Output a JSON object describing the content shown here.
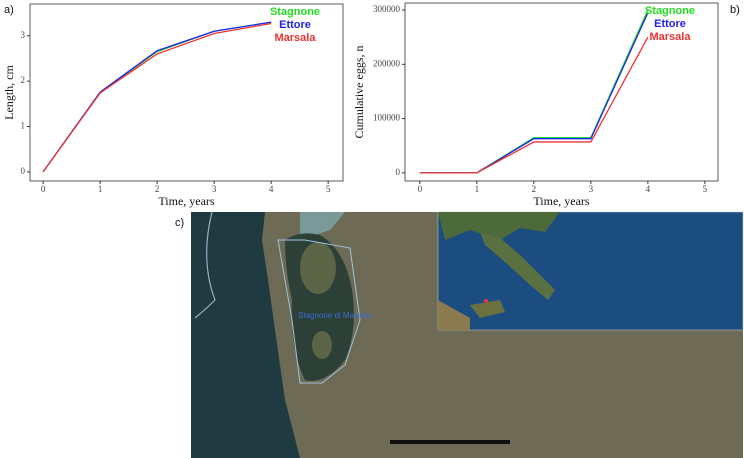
{
  "panel_labels": [
    "a)",
    "b)",
    "c)"
  ],
  "map": {
    "labels": [
      "Stagnone di Marsala"
    ]
  },
  "chart_data": [
    {
      "type": "line",
      "xlabel": "Time, years",
      "ylabel": "Length, cm",
      "x": [
        0,
        1,
        2,
        3,
        4
      ],
      "series": [
        {
          "name": "Stagnone",
          "color": "#22dd22",
          "values": [
            0,
            1.75,
            2.65,
            3.1,
            3.3
          ]
        },
        {
          "name": "Ettore",
          "color": "#2222ee",
          "values": [
            0,
            1.76,
            2.67,
            3.1,
            3.3
          ]
        },
        {
          "name": "Marsala",
          "color": "#ee3333",
          "values": [
            0,
            1.74,
            2.6,
            3.05,
            3.27
          ]
        }
      ],
      "xlim": [
        -0.23,
        5.26
      ],
      "ylim": [
        -0.2,
        3.7
      ],
      "xticks": [
        0,
        1,
        2,
        3,
        4,
        5
      ],
      "yticks": [
        0,
        1,
        2,
        3
      ],
      "legend": "upper right"
    },
    {
      "type": "line",
      "xlabel": "Time, years",
      "ylabel": "Cumulative eggs, n",
      "x": [
        0,
        1,
        2,
        3,
        4
      ],
      "series": [
        {
          "name": "Stagnone",
          "color": "#22dd22",
          "values": [
            0,
            0,
            65000,
            65000,
            300000
          ]
        },
        {
          "name": "Ettore",
          "color": "#2222ee",
          "values": [
            0,
            0,
            63000,
            63000,
            295000
          ]
        },
        {
          "name": "Marsala",
          "color": "#ee3333",
          "values": [
            0,
            0,
            57000,
            57000,
            250000
          ]
        }
      ],
      "xlim": [
        -0.26,
        5.23
      ],
      "ylim": [
        -15000,
        313000
      ],
      "xticks": [
        0,
        1,
        2,
        3,
        4,
        5
      ],
      "yticks": [
        0,
        100000,
        200000,
        300000
      ],
      "legend": "upper right"
    }
  ]
}
